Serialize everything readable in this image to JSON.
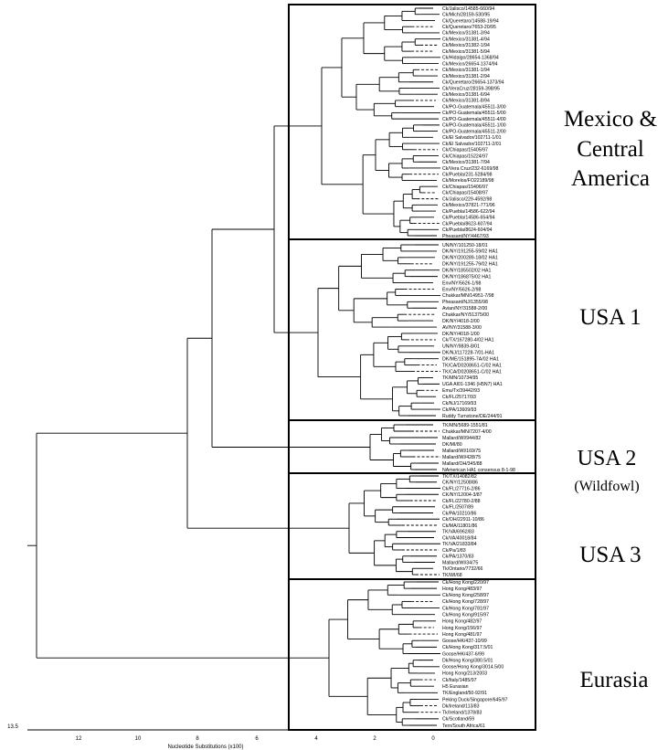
{
  "regions": [
    {
      "id": "mx",
      "lines": [
        "Mexico &",
        "Central",
        "America"
      ]
    },
    {
      "id": "usa1",
      "lines": [
        "USA 1"
      ]
    },
    {
      "id": "usa2",
      "lines": [
        "USA 2",
        "(Wildfowl)"
      ]
    },
    {
      "id": "usa3",
      "lines": [
        "USA 3"
      ]
    },
    {
      "id": "eur",
      "lines": [
        "Eurasia"
      ]
    }
  ],
  "axis": {
    "title": "Nucleotide Substitutions (x100)",
    "ticks": [
      "12",
      "10",
      "8",
      "6",
      "4",
      "2",
      "0"
    ],
    "far_left": "13.5"
  },
  "clades": {
    "mx": [
      "Ck/Jalisco/14585-660/94",
      "Ck/Mich/28159-530/95",
      "Ck/Queretaro/14588-19/94",
      "Ck/Queretaro/7653-20/95",
      "Ck/Mexico/31381-3/94",
      "Ck/Mexico/31381-4/94",
      "Ck/Mexico/31382-1/94",
      "Ck/Mexico/31381-5/94",
      "Ck/Hidalgo/28654-1368/94",
      "Ck/Mexico/26654-1374/94",
      "Ck/Mexico/31381-1/94",
      "Ck/Mexico/31381-2/94",
      "Ck/Queretaro/26654-1373/94",
      "Ck/VeraCruz/28159-398/95",
      "Ck/Mexico/31381-6/94",
      "Ck/Mexico/31381-8/94",
      "Ck/PO-Guatemala/45511-3/00",
      "Ck/PO-Guatemala/45511-5/00",
      "Ck/PO-Guatemala/45511-4/00",
      "Ck/PO-Guatemala/45511-1/00",
      "Ck/PO-Guatemala/45511-2/00",
      "Ck/El Salvador/102711-1/01",
      "Ck/El Salvador/102711-2/01",
      "Ck/Chiapas/15405/97",
      "Ck/Chiapas/15224/97",
      "Ck/Mexico/31381-7/94",
      "Ck/Vera Cruz/232-6169/98",
      "Ck/Puebla/231-5284/98",
      "Ck/Morelos/FO22189/98",
      "Ck/Chiapas/15406/97",
      "Ck/Chiapas/15408/97",
      "Ck/Jalisco/229-4592/98",
      "Ck/Mexico/37821-771/96",
      "Ck/Puebla/14586-622/94",
      "Ck/Puebla/14586-654/94",
      "Ck/Puebla/8623-607/94",
      "Ck/Puebla/8624-604/94",
      "Pheasant/NY/4467/93"
    ],
    "usa1": [
      "UN/NY/101250-18/01",
      "DK/NY/191255-59/02 HA1",
      "DK/NY/200289-18/02 HA1",
      "DK/NY/191255-79/02 HA1",
      "DK/NY/185502/02 HA1",
      "DK/NY/186875/02 HA1",
      "Env/NY/5626-1/98",
      "Env/NY/5626-2/98",
      "Chukkar/MN/14951-7/98",
      "Pheasant/NJ/1355/98",
      "Avian/NY/31588-2/00",
      "Chukkar/NY/51375/00",
      "DK/NY/4018-2/00",
      "AV/NY/31588-3/00",
      "DK/NY/4018-1/00",
      "Ck/TX/167280-4/02 HA1",
      "UN/NY/9839-8/01",
      "DK/NJ/117228-7/01-HA1",
      "DK/ME/151895-7A/02 HA1",
      "TK/CA/D0208651-C/02 HA1",
      "TK/CA/D0208651-C/02 HA1",
      "TK/MN/10734/95",
      "UGA AI01-1346 (H5N7) HA1",
      "Emu/Tx/39442/93",
      "Ck/FL/25717/93",
      "Ck/NJ/17169/93",
      "Ck/PA/13609/93",
      "Ruddy Turnstone/DE/244/91"
    ],
    "usa2": [
      "TK/MN/5689-1551/81",
      "Chukkar/MN/7207-4/00",
      "Mallard/WI/944/82",
      "DK/MI/80",
      "Mallard/WI/169/75",
      "Mallard/WI/428/75",
      "Mallard/OH/345/88",
      "NAmerican HA1 consensus 8-1-98"
    ],
    "usa3": [
      "TK/TX/14082/82",
      "CK/NY/12508/86",
      "Ck/FL/27716-2/86",
      "CK/NY/12004-3/87",
      "Ck/FL/22780-2/88",
      "Ck/FL/2507/89",
      "Ck/PA/10210/86",
      "Ck/OH/22911-10/86",
      "Ck/MA/11801/86",
      "TK/VA/6962/83",
      "Ck/VA/40018/84",
      "TK/VA/21833/84",
      "Ck/Pa/1/83",
      "Ck/PA/1370/83",
      "Mallard/WI/34/75",
      "Tk/Ontario/7732/66",
      "TK/WI/68"
    ],
    "eur": [
      "Ck/Hong Kong/220/97",
      "Hong Kong/483/97",
      "Ck/Hong Kong/258/97",
      "Ck/Hong Kong/728/97",
      "Ck/Hong Kong/781/97",
      "Ck/Hong Kong/915/97",
      "Hong Kong/482/97",
      "Hong Kong/156/97",
      "Hong Kong/481/97",
      "Goose/HK/437-10/99",
      "Ck/Hong Kong/317.5/01",
      "Goose/HK/437-6/99",
      "Dk/Hong Kong/380.5/01",
      "Goose/Hong Kong/3014.5/00",
      "Hong Kong/213/2003",
      "Ck/Italy/1485/97",
      "H5 Eurasian",
      "TK/England/50-92/91",
      "Peking Duck/Singapore/645/97",
      "Dk/Ireland/113/83",
      "Tk/Ireland/1378/83",
      "Ck/Scotland/59",
      "Tern/South Africa/61"
    ]
  }
}
